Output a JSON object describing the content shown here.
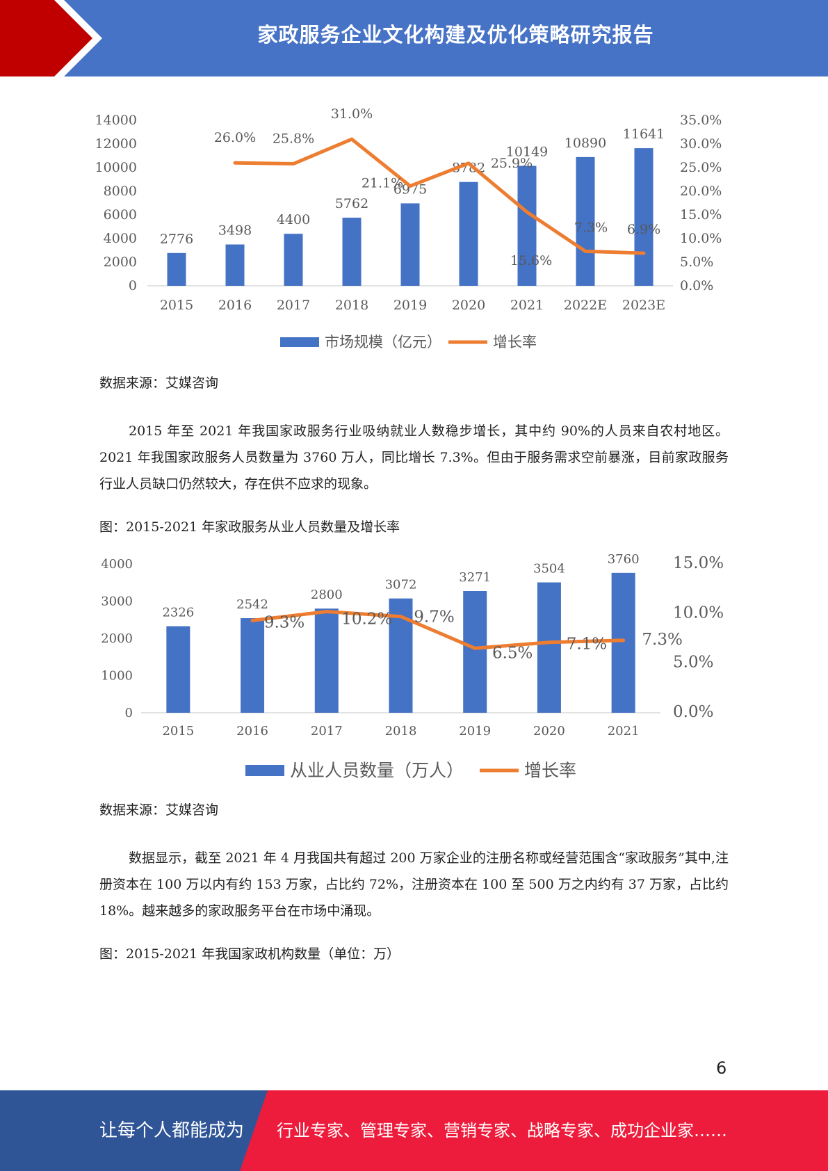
{
  "header": {
    "title": "家政服务企业文化构建及优化策略研究报告"
  },
  "chart1": {
    "source": "数据来源：艾媒咨询"
  },
  "paragraph1": "2015 年至 2021 年我国家政服务行业吸纳就业人数稳步增长，其中约 90%的人员来自农村地区。2021 年我国家政服务人员数量为 3760 万人，同比增长 7.3%。但由于服务需求空前暴涨，目前家政服务行业人员缺口仍然较大，存在供不应求的现象。",
  "chart2": {
    "caption": "图：2015-2021 年家政服务从业人员数量及增长率",
    "source": "数据来源：艾媒咨询"
  },
  "paragraph2": "数据显示，截至 2021 年 4 月我国共有超过 200 万家企业的注册名称或经营范围含“家政服务”其中,注册资本在 100 万以内有约 153 万家，占比约 72%，注册资本在 100 至 500 万之内约有 37 万家，占比约 18%。越来越多的家政服务平台在市场中涌现。",
  "caption3": "图：2015-2021 年我国家政机构数量（单位：万）",
  "page_number": "6",
  "footer": {
    "left": "让每个人都能成为",
    "right": "行业专家、管理专家、营销专家、战略专家、成功企业家……"
  },
  "colors": {
    "header": "#4673c6",
    "accent_red": "#c00000",
    "bar": "#4472c4",
    "line": "#ed7d31",
    "footer_blue": "#2f5597",
    "footer_red": "#ee1c3c"
  },
  "chart_data": [
    {
      "type": "bar",
      "categories": [
        "2015",
        "2016",
        "2017",
        "2018",
        "2019",
        "2020",
        "2021",
        "2022E",
        "2023E"
      ],
      "series": [
        {
          "name": "市场规模（亿元）",
          "type": "bar",
          "axis": "left",
          "values": [
            2776,
            3498,
            4400,
            5762,
            6975,
            8782,
            10149,
            10890,
            11641
          ],
          "labels": [
            "2776",
            "3498",
            "4400",
            "5762",
            "6975",
            "8782",
            "10149",
            "10890",
            "11641"
          ]
        },
        {
          "name": "增长率",
          "type": "line",
          "axis": "right",
          "values": [
            null,
            26.0,
            25.8,
            31.0,
            21.1,
            25.9,
            15.6,
            7.3,
            6.9
          ],
          "labels": [
            "",
            "26.0%",
            "25.8%",
            "31.0%",
            "21.1%",
            "25.9%",
            "15.6%",
            "7.3%",
            "6.9%"
          ]
        }
      ],
      "left_ticks": [
        "0",
        "2000",
        "4000",
        "6000",
        "8000",
        "10000",
        "12000",
        "14000"
      ],
      "right_ticks": [
        "0.0%",
        "5.0%",
        "10.0%",
        "15.0%",
        "20.0%",
        "25.0%",
        "30.0%",
        "35.0%"
      ],
      "ylim": [
        0,
        14000
      ],
      "y2lim": [
        0,
        35
      ],
      "legend": "bottom"
    },
    {
      "type": "bar",
      "categories": [
        "2015",
        "2016",
        "2017",
        "2018",
        "2019",
        "2020",
        "2021"
      ],
      "series": [
        {
          "name": "从业人员数量（万人）",
          "type": "bar",
          "axis": "left",
          "values": [
            2326,
            2542,
            2800,
            3072,
            3271,
            3504,
            3760
          ],
          "labels": [
            "2326",
            "2542",
            "2800",
            "3072",
            "3271",
            "3504",
            "3760"
          ]
        },
        {
          "name": "增长率",
          "type": "line",
          "axis": "right",
          "values": [
            null,
            9.3,
            10.2,
            9.7,
            6.5,
            7.1,
            7.3
          ],
          "labels": [
            "",
            "9.3%",
            "10.2%",
            "9.7%",
            "6.5%",
            "7.1%",
            "7.3%"
          ]
        }
      ],
      "left_ticks": [
        "0",
        "1000",
        "2000",
        "3000",
        "4000"
      ],
      "right_ticks": [
        "0.0%",
        "5.0%",
        "10.0%",
        "15.0%"
      ],
      "ylim": [
        0,
        4000
      ],
      "y2lim": [
        0,
        15
      ],
      "legend": "bottom"
    }
  ]
}
